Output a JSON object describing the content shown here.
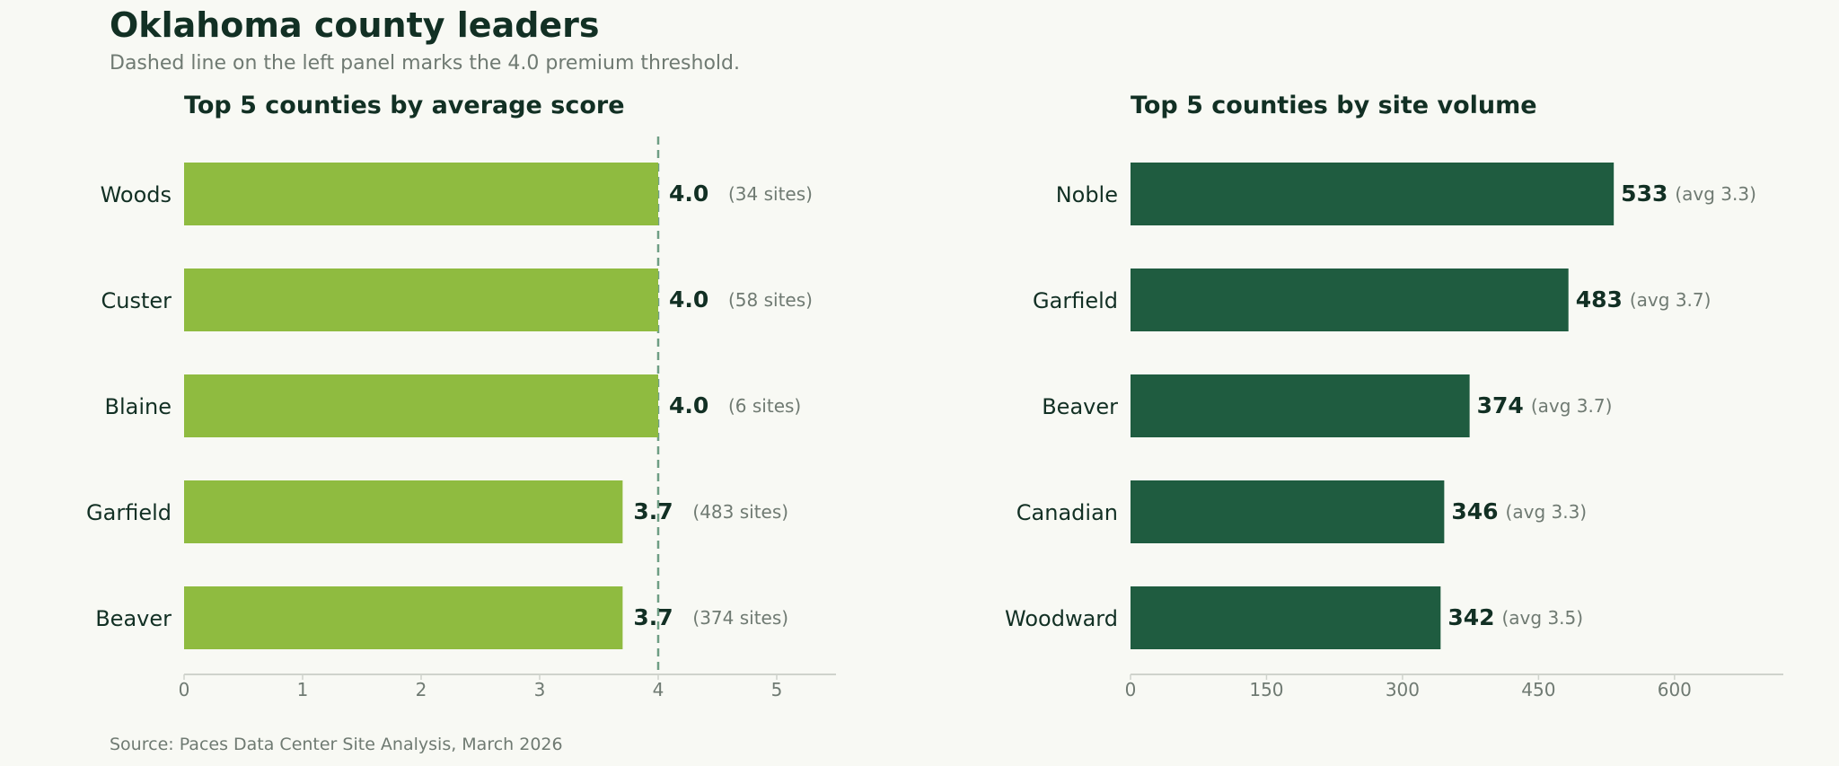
{
  "title": "Oklahoma county leaders",
  "subtitle": "Dashed line on the left panel marks the 4.0 premium threshold.",
  "source": "Source: Paces Data Center Site Analysis, March 2026",
  "colors": {
    "left_bar": "#8fbb40",
    "right_bar": "#1f5c40",
    "threshold_line": "#6e9e84",
    "axis": "#cfd3cc"
  },
  "chart_data": [
    {
      "type": "bar",
      "orientation": "horizontal",
      "title": "Top 5 counties by average score",
      "categories": [
        "Woods",
        "Custer",
        "Blaine",
        "Garfield",
        "Beaver"
      ],
      "values": [
        4.0,
        4.0,
        4.0,
        3.7,
        3.7
      ],
      "value_labels": [
        "4.0",
        "4.0",
        "4.0",
        "3.7",
        "3.7"
      ],
      "secondary_labels": [
        "(34 sites)",
        "(58 sites)",
        "(6 sites)",
        "(483 sites)",
        "(374 sites)"
      ],
      "xlim": [
        0,
        5.5
      ],
      "xticks": [
        0,
        1,
        2,
        3,
        4,
        5
      ],
      "xtick_labels": [
        "0",
        "1",
        "2",
        "3",
        "4",
        "5"
      ],
      "threshold": 4.0,
      "grid": false
    },
    {
      "type": "bar",
      "orientation": "horizontal",
      "title": "Top 5 counties by site volume",
      "categories": [
        "Noble",
        "Garfield",
        "Beaver",
        "Canadian",
        "Woodward"
      ],
      "values": [
        533,
        483,
        374,
        346,
        342
      ],
      "value_labels": [
        "533",
        "483",
        "374",
        "346",
        "342"
      ],
      "secondary_labels": [
        "(avg 3.3)",
        "(avg 3.7)",
        "(avg 3.7)",
        "(avg 3.3)",
        "(avg 3.5)"
      ],
      "xlim": [
        0,
        720
      ],
      "xticks": [
        0,
        150,
        300,
        450,
        600
      ],
      "xtick_labels": [
        "0",
        "150",
        "300",
        "450",
        "600"
      ],
      "grid": false
    }
  ]
}
